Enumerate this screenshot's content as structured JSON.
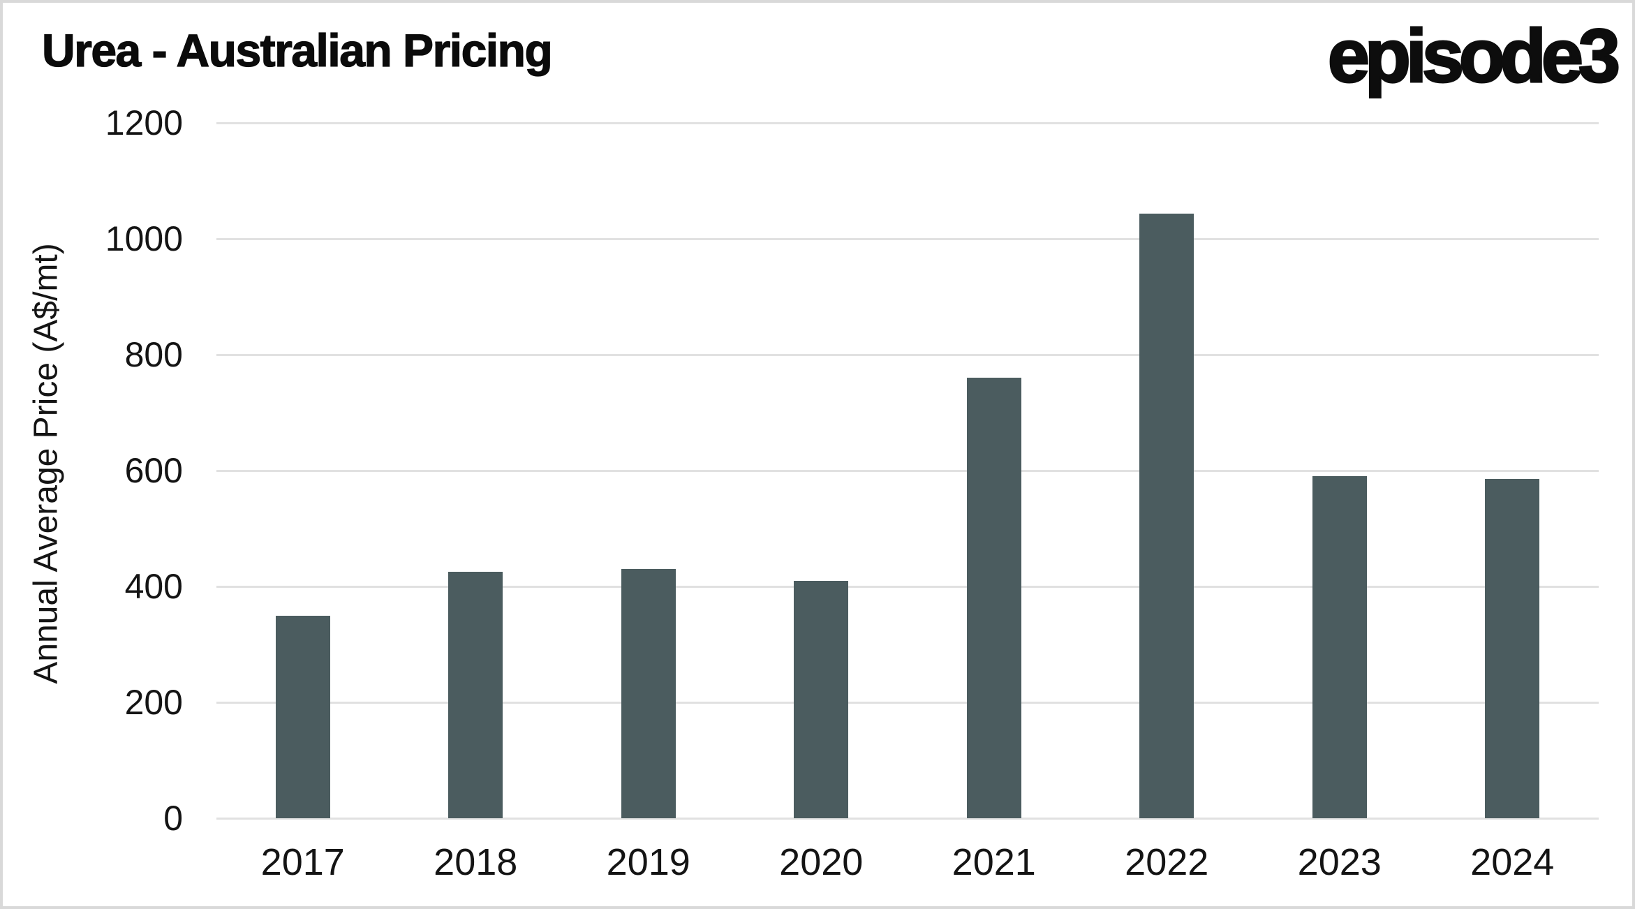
{
  "header": {
    "title": "Urea - Australian Pricing",
    "logo_text": "episode3"
  },
  "chart_data": {
    "type": "bar",
    "title": "Urea - Australian Pricing",
    "categories": [
      "2017",
      "2018",
      "2019",
      "2020",
      "2021",
      "2022",
      "2023",
      "2024"
    ],
    "values": [
      350,
      425,
      430,
      410,
      760,
      1043,
      590,
      585
    ],
    "xlabel": "",
    "ylabel": "Annual Average Price (A$/mt)",
    "ylim": [
      0,
      1200
    ],
    "yticks": [
      0,
      200,
      400,
      600,
      800,
      1000,
      1200
    ],
    "ytick_labels": [
      "0",
      "200",
      "400",
      "600",
      "800",
      "1000",
      "1200"
    ],
    "grid": "horizontal",
    "legend": "none",
    "colors": {
      "bar": "#4b5c5f",
      "gridline": "#e1e1e1",
      "text": "#141414",
      "frame_border": "#d9d9d9",
      "background": "#ffffff"
    }
  }
}
